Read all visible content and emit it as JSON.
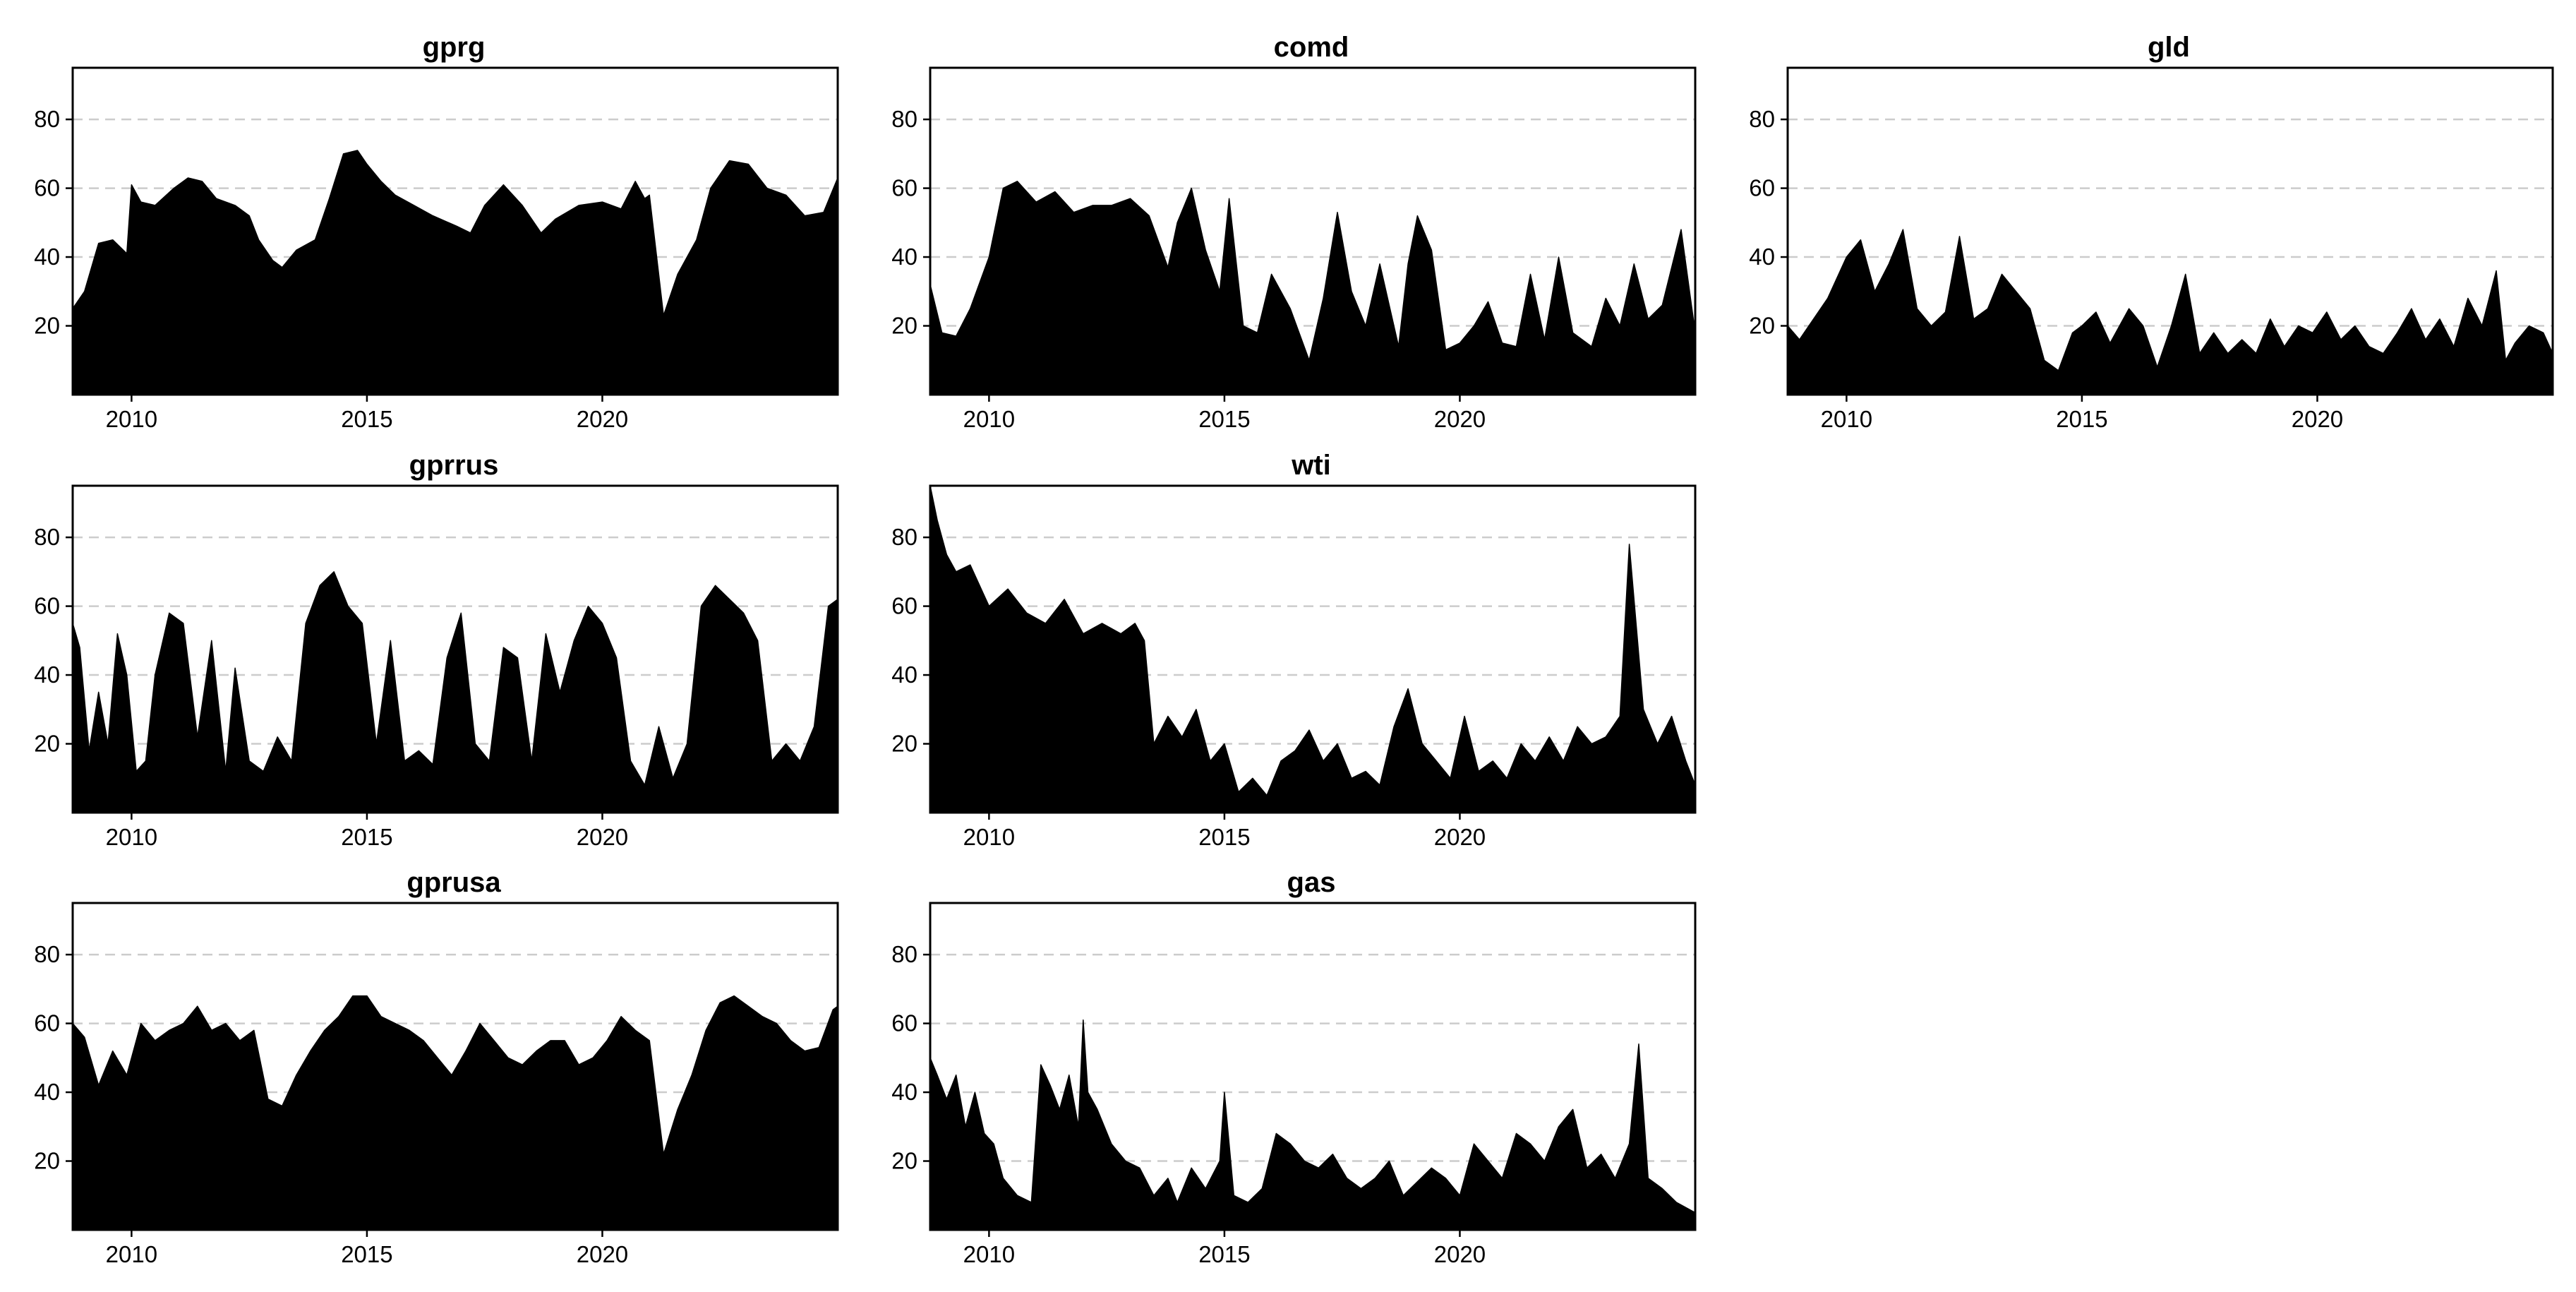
{
  "figure": {
    "layout": "3x3 grid of small multiples, 8 panels, bottom-right empty",
    "grid": "horizontal dashed gridlines at y ticks",
    "fill_color": "#000000",
    "grid_color": "#cccccc"
  },
  "chart_data": [
    {
      "type": "area",
      "title": "gprg",
      "xlim": [
        2008.75,
        2025.0
      ],
      "ylim": [
        0,
        95
      ],
      "x_ticks": [
        2010,
        2015,
        2020
      ],
      "y_ticks": [
        20,
        40,
        60,
        80
      ],
      "series": [
        {
          "x": [
            2008.75,
            2009.0,
            2009.3,
            2009.6,
            2009.9,
            2010.0,
            2010.2,
            2010.5,
            2010.9,
            2011.2,
            2011.5,
            2011.8,
            2012.2,
            2012.5,
            2012.7,
            2013.0,
            2013.2,
            2013.5,
            2013.9,
            2014.2,
            2014.5,
            2014.8,
            2015.0,
            2015.3,
            2015.6,
            2016.0,
            2016.4,
            2016.9,
            2017.2,
            2017.5,
            2017.9,
            2018.3,
            2018.7,
            2019.0,
            2019.5,
            2020.0,
            2020.4,
            2020.7,
            2020.9,
            2021.0,
            2021.3,
            2021.6,
            2022.0,
            2022.3,
            2022.7,
            2023.1,
            2023.5,
            2023.9,
            2024.3,
            2024.7,
            2025.0
          ],
          "values": [
            25,
            30,
            44,
            45,
            41,
            61,
            56,
            55,
            60,
            63,
            62,
            57,
            55,
            52,
            45,
            39,
            37,
            42,
            45,
            57,
            70,
            71,
            67,
            62,
            58,
            55,
            52,
            49,
            47,
            55,
            61,
            55,
            47,
            51,
            55,
            56,
            54,
            62,
            57,
            58,
            23,
            35,
            45,
            60,
            68,
            67,
            60,
            58,
            52,
            53,
            63
          ]
        }
      ]
    },
    {
      "type": "area",
      "title": "comd",
      "xlim": [
        2008.75,
        2025.0
      ],
      "ylim": [
        0,
        95
      ],
      "x_ticks": [
        2010,
        2015,
        2020
      ],
      "y_ticks": [
        20,
        40,
        60,
        80
      ],
      "series": [
        {
          "x": [
            2008.75,
            2009.0,
            2009.3,
            2009.6,
            2010.0,
            2010.3,
            2010.6,
            2011.0,
            2011.4,
            2011.8,
            2012.2,
            2012.6,
            2013.0,
            2013.4,
            2013.8,
            2014.0,
            2014.3,
            2014.6,
            2014.9,
            2015.1,
            2015.4,
            2015.7,
            2016.0,
            2016.4,
            2016.8,
            2017.1,
            2017.4,
            2017.7,
            2018.0,
            2018.3,
            2018.7,
            2018.9,
            2019.1,
            2019.4,
            2019.7,
            2020.0,
            2020.3,
            2020.6,
            2020.9,
            2021.2,
            2021.5,
            2021.8,
            2022.1,
            2022.4,
            2022.8,
            2023.1,
            2023.4,
            2023.7,
            2024.0,
            2024.3,
            2024.7,
            2025.0
          ],
          "values": [
            32,
            18,
            17,
            25,
            40,
            60,
            62,
            56,
            59,
            53,
            55,
            55,
            57,
            52,
            37,
            50,
            60,
            42,
            30,
            57,
            20,
            18,
            35,
            25,
            10,
            28,
            53,
            30,
            20,
            38,
            14,
            38,
            52,
            42,
            13,
            15,
            20,
            27,
            15,
            14,
            35,
            16,
            40,
            18,
            14,
            28,
            20,
            38,
            22,
            26,
            48,
            18
          ]
        }
      ]
    },
    {
      "type": "area",
      "title": "gld",
      "xlim": [
        2008.75,
        2025.0
      ],
      "ylim": [
        0,
        95
      ],
      "x_ticks": [
        2010,
        2015,
        2020
      ],
      "y_ticks": [
        20,
        40,
        60,
        80
      ],
      "series": [
        {
          "x": [
            2008.75,
            2009.0,
            2009.3,
            2009.6,
            2010.0,
            2010.3,
            2010.6,
            2010.9,
            2011.2,
            2011.5,
            2011.8,
            2012.1,
            2012.4,
            2012.7,
            2013.0,
            2013.3,
            2013.6,
            2013.9,
            2014.2,
            2014.5,
            2014.8,
            2015.0,
            2015.3,
            2015.6,
            2016.0,
            2016.3,
            2016.6,
            2016.9,
            2017.2,
            2017.5,
            2017.8,
            2018.1,
            2018.4,
            2018.7,
            2019.0,
            2019.3,
            2019.6,
            2019.9,
            2020.2,
            2020.5,
            2020.8,
            2021.1,
            2021.4,
            2021.7,
            2022.0,
            2022.3,
            2022.6,
            2022.9,
            2023.2,
            2023.5,
            2023.8,
            2024.0,
            2024.2,
            2024.5,
            2024.8,
            2025.0
          ],
          "values": [
            20,
            16,
            22,
            28,
            40,
            45,
            30,
            38,
            48,
            25,
            20,
            24,
            46,
            22,
            25,
            35,
            30,
            25,
            10,
            7,
            18,
            20,
            24,
            15,
            25,
            20,
            8,
            20,
            35,
            12,
            18,
            12,
            16,
            12,
            22,
            14,
            20,
            18,
            24,
            16,
            20,
            14,
            12,
            18,
            25,
            16,
            22,
            14,
            28,
            20,
            36,
            10,
            15,
            20,
            18,
            12
          ]
        }
      ]
    },
    {
      "type": "area",
      "title": "gprrus",
      "xlim": [
        2008.75,
        2025.0
      ],
      "ylim": [
        0,
        95
      ],
      "x_ticks": [
        2010,
        2015,
        2020
      ],
      "y_ticks": [
        20,
        40,
        60,
        80
      ],
      "series": [
        {
          "x": [
            2008.75,
            2008.9,
            2009.1,
            2009.3,
            2009.5,
            2009.7,
            2009.9,
            2010.1,
            2010.3,
            2010.5,
            2010.8,
            2011.1,
            2011.4,
            2011.7,
            2012.0,
            2012.2,
            2012.5,
            2012.8,
            2013.1,
            2013.4,
            2013.7,
            2014.0,
            2014.3,
            2014.6,
            2014.9,
            2015.2,
            2015.5,
            2015.8,
            2016.1,
            2016.4,
            2016.7,
            2017.0,
            2017.3,
            2017.6,
            2017.9,
            2018.2,
            2018.5,
            2018.8,
            2019.1,
            2019.4,
            2019.7,
            2020.0,
            2020.3,
            2020.6,
            2020.9,
            2021.2,
            2021.5,
            2021.8,
            2022.1,
            2022.4,
            2022.7,
            2023.0,
            2023.3,
            2023.6,
            2023.9,
            2024.2,
            2024.5,
            2024.8,
            2025.0
          ],
          "values": [
            55,
            48,
            18,
            35,
            20,
            52,
            40,
            12,
            15,
            40,
            58,
            55,
            22,
            50,
            12,
            42,
            15,
            12,
            22,
            15,
            55,
            66,
            70,
            60,
            55,
            20,
            50,
            15,
            18,
            14,
            45,
            58,
            20,
            15,
            48,
            45,
            15,
            52,
            35,
            50,
            60,
            55,
            45,
            15,
            8,
            25,
            10,
            20,
            60,
            66,
            62,
            58,
            50,
            15,
            20,
            15,
            25,
            60,
            62
          ]
        }
      ]
    },
    {
      "type": "area",
      "title": "wti",
      "xlim": [
        2008.75,
        2025.0
      ],
      "ylim": [
        0,
        95
      ],
      "x_ticks": [
        2010,
        2015,
        2020
      ],
      "y_ticks": [
        20,
        40,
        60,
        80
      ],
      "series": [
        {
          "x": [
            2008.75,
            2008.9,
            2009.1,
            2009.3,
            2009.6,
            2010.0,
            2010.4,
            2010.8,
            2011.2,
            2011.6,
            2012.0,
            2012.4,
            2012.8,
            2013.1,
            2013.3,
            2013.5,
            2013.8,
            2014.1,
            2014.4,
            2014.7,
            2015.0,
            2015.3,
            2015.6,
            2015.9,
            2016.2,
            2016.5,
            2016.8,
            2017.1,
            2017.4,
            2017.7,
            2018.0,
            2018.3,
            2018.6,
            2018.9,
            2019.2,
            2019.5,
            2019.8,
            2020.1,
            2020.4,
            2020.7,
            2021.0,
            2021.3,
            2021.6,
            2021.9,
            2022.2,
            2022.5,
            2022.8,
            2023.1,
            2023.4,
            2023.6,
            2023.9,
            2024.2,
            2024.5,
            2024.8,
            2025.0
          ],
          "values": [
            95,
            85,
            75,
            70,
            72,
            60,
            65,
            58,
            55,
            62,
            52,
            55,
            52,
            55,
            50,
            20,
            28,
            22,
            30,
            15,
            20,
            6,
            10,
            5,
            15,
            18,
            24,
            15,
            20,
            10,
            12,
            8,
            25,
            36,
            20,
            15,
            10,
            28,
            12,
            15,
            10,
            20,
            15,
            22,
            15,
            25,
            20,
            22,
            28,
            78,
            30,
            20,
            28,
            15,
            8
          ]
        }
      ]
    },
    {
      "type": "area",
      "title": "gprusa",
      "xlim": [
        2008.75,
        2025.0
      ],
      "ylim": [
        0,
        95
      ],
      "x_ticks": [
        2010,
        2015,
        2020
      ],
      "y_ticks": [
        20,
        40,
        60,
        80
      ],
      "series": [
        {
          "x": [
            2008.75,
            2009.0,
            2009.3,
            2009.6,
            2009.9,
            2010.2,
            2010.5,
            2010.8,
            2011.1,
            2011.4,
            2011.7,
            2012.0,
            2012.3,
            2012.6,
            2012.9,
            2013.2,
            2013.5,
            2013.8,
            2014.1,
            2014.4,
            2014.7,
            2015.0,
            2015.3,
            2015.6,
            2015.9,
            2016.2,
            2016.5,
            2016.8,
            2017.1,
            2017.4,
            2017.7,
            2018.0,
            2018.3,
            2018.6,
            2018.9,
            2019.2,
            2019.5,
            2019.8,
            2020.1,
            2020.4,
            2020.7,
            2021.0,
            2021.3,
            2021.6,
            2021.9,
            2022.2,
            2022.5,
            2022.8,
            2023.1,
            2023.4,
            2023.7,
            2024.0,
            2024.3,
            2024.6,
            2024.9,
            2025.0
          ],
          "values": [
            60,
            56,
            42,
            52,
            45,
            60,
            55,
            58,
            60,
            65,
            58,
            60,
            55,
            58,
            38,
            36,
            45,
            52,
            58,
            62,
            68,
            68,
            62,
            60,
            58,
            55,
            50,
            45,
            52,
            60,
            55,
            50,
            48,
            52,
            55,
            55,
            48,
            50,
            55,
            62,
            58,
            55,
            22,
            35,
            45,
            58,
            66,
            68,
            65,
            62,
            60,
            55,
            52,
            53,
            64,
            65
          ]
        }
      ]
    },
    {
      "type": "area",
      "title": "gas",
      "xlim": [
        2008.75,
        2025.0
      ],
      "ylim": [
        0,
        95
      ],
      "x_ticks": [
        2010,
        2015,
        2020
      ],
      "y_ticks": [
        20,
        40,
        60,
        80
      ],
      "series": [
        {
          "x": [
            2008.75,
            2008.9,
            2009.1,
            2009.3,
            2009.5,
            2009.7,
            2009.9,
            2010.1,
            2010.3,
            2010.6,
            2010.9,
            2011.1,
            2011.3,
            2011.5,
            2011.7,
            2011.9,
            2012.0,
            2012.1,
            2012.3,
            2012.6,
            2012.9,
            2013.2,
            2013.5,
            2013.8,
            2014.0,
            2014.3,
            2014.6,
            2014.9,
            2015.0,
            2015.2,
            2015.5,
            2015.8,
            2016.1,
            2016.4,
            2016.7,
            2017.0,
            2017.3,
            2017.6,
            2017.9,
            2018.2,
            2018.5,
            2018.8,
            2019.1,
            2019.4,
            2019.7,
            2020.0,
            2020.3,
            2020.6,
            2020.9,
            2021.2,
            2021.5,
            2021.8,
            2022.1,
            2022.4,
            2022.7,
            2023.0,
            2023.3,
            2023.6,
            2023.8,
            2024.0,
            2024.3,
            2024.6,
            2025.0
          ],
          "values": [
            50,
            45,
            38,
            45,
            30,
            40,
            28,
            25,
            15,
            10,
            8,
            48,
            42,
            35,
            45,
            30,
            61,
            40,
            35,
            25,
            20,
            18,
            10,
            15,
            8,
            18,
            12,
            20,
            40,
            10,
            8,
            12,
            28,
            25,
            20,
            18,
            22,
            15,
            12,
            15,
            20,
            10,
            14,
            18,
            15,
            10,
            25,
            20,
            15,
            28,
            25,
            20,
            30,
            35,
            18,
            22,
            15,
            25,
            54,
            15,
            12,
            8,
            5
          ]
        }
      ]
    }
  ]
}
